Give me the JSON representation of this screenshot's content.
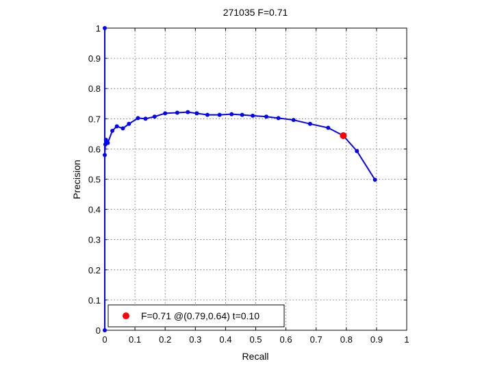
{
  "chart_data": {
    "type": "line",
    "title": "271035 F=0.71",
    "xlabel": "Recall",
    "ylabel": "Precision",
    "xlim": [
      0,
      1
    ],
    "ylim": [
      0,
      1
    ],
    "xticks": [
      "0",
      "0.1",
      "0.2",
      "0.3",
      "0.4",
      "0.5",
      "0.6",
      "0.7",
      "0.8",
      "0.9",
      "1"
    ],
    "yticks": [
      "0",
      "0.1",
      "0.2",
      "0.3",
      "0.4",
      "0.5",
      "0.6",
      "0.7",
      "0.8",
      "0.9",
      "1"
    ],
    "grid": true,
    "series": [
      {
        "color": "#0000ff",
        "x": [
          0,
          0,
          0,
          0.002,
          0.004,
          0.01,
          0.025,
          0.04,
          0.06,
          0.08,
          0.11,
          0.135,
          0.165,
          0.2,
          0.24,
          0.275,
          0.305,
          0.34,
          0.38,
          0.42,
          0.455,
          0.49,
          0.535,
          0.575,
          0.625,
          0.68,
          0.74,
          0.79,
          0.835,
          0.895
        ],
        "y": [
          0,
          1.0,
          0.58,
          0.615,
          0.63,
          0.62,
          0.66,
          0.675,
          0.668,
          0.683,
          0.702,
          0.7,
          0.707,
          0.718,
          0.72,
          0.722,
          0.718,
          0.713,
          0.713,
          0.715,
          0.713,
          0.71,
          0.707,
          0.702,
          0.696,
          0.683,
          0.67,
          0.644,
          0.593,
          0.498
        ]
      }
    ],
    "highlight": {
      "x": 0.79,
      "y": 0.644,
      "color": "#ff0000"
    },
    "legend": {
      "text": "F=0.71 @(0.79,0.64) t=0.10",
      "position": "bottom-left"
    }
  }
}
